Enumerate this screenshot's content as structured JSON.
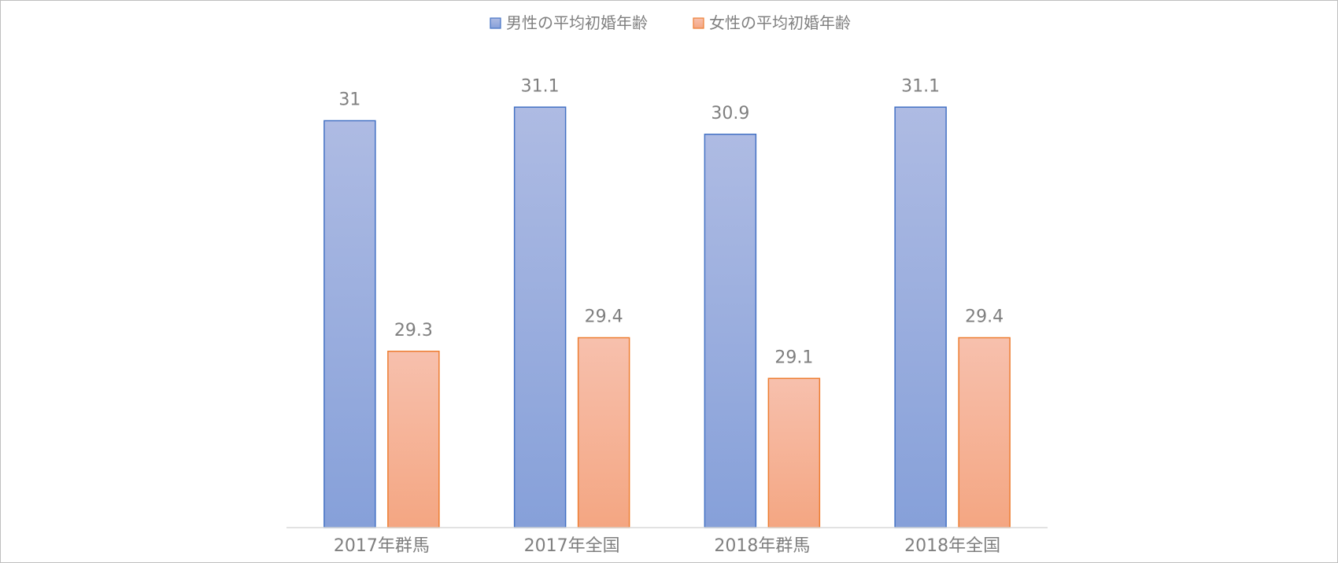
{
  "chart_data": {
    "type": "bar",
    "categories": [
      "2017年群馬",
      "2017年全国",
      "2018年群馬",
      "2018年全国"
    ],
    "series": [
      {
        "name": "男性の平均初婚年齢",
        "values": [
          31,
          31.1,
          30.9,
          31.1
        ],
        "color": "#4472c4"
      },
      {
        "name": "女性の平均初婚年齢",
        "values": [
          29.3,
          29.4,
          29.1,
          29.4
        ],
        "color": "#ed7d31"
      }
    ],
    "value_labels": [
      [
        "31",
        "31.1",
        "30.9",
        "31.1"
      ],
      [
        "29.3",
        "29.4",
        "29.1",
        "29.4"
      ]
    ],
    "ylim": [
      28,
      31.6
    ],
    "legend": "top-center",
    "grid": false
  }
}
